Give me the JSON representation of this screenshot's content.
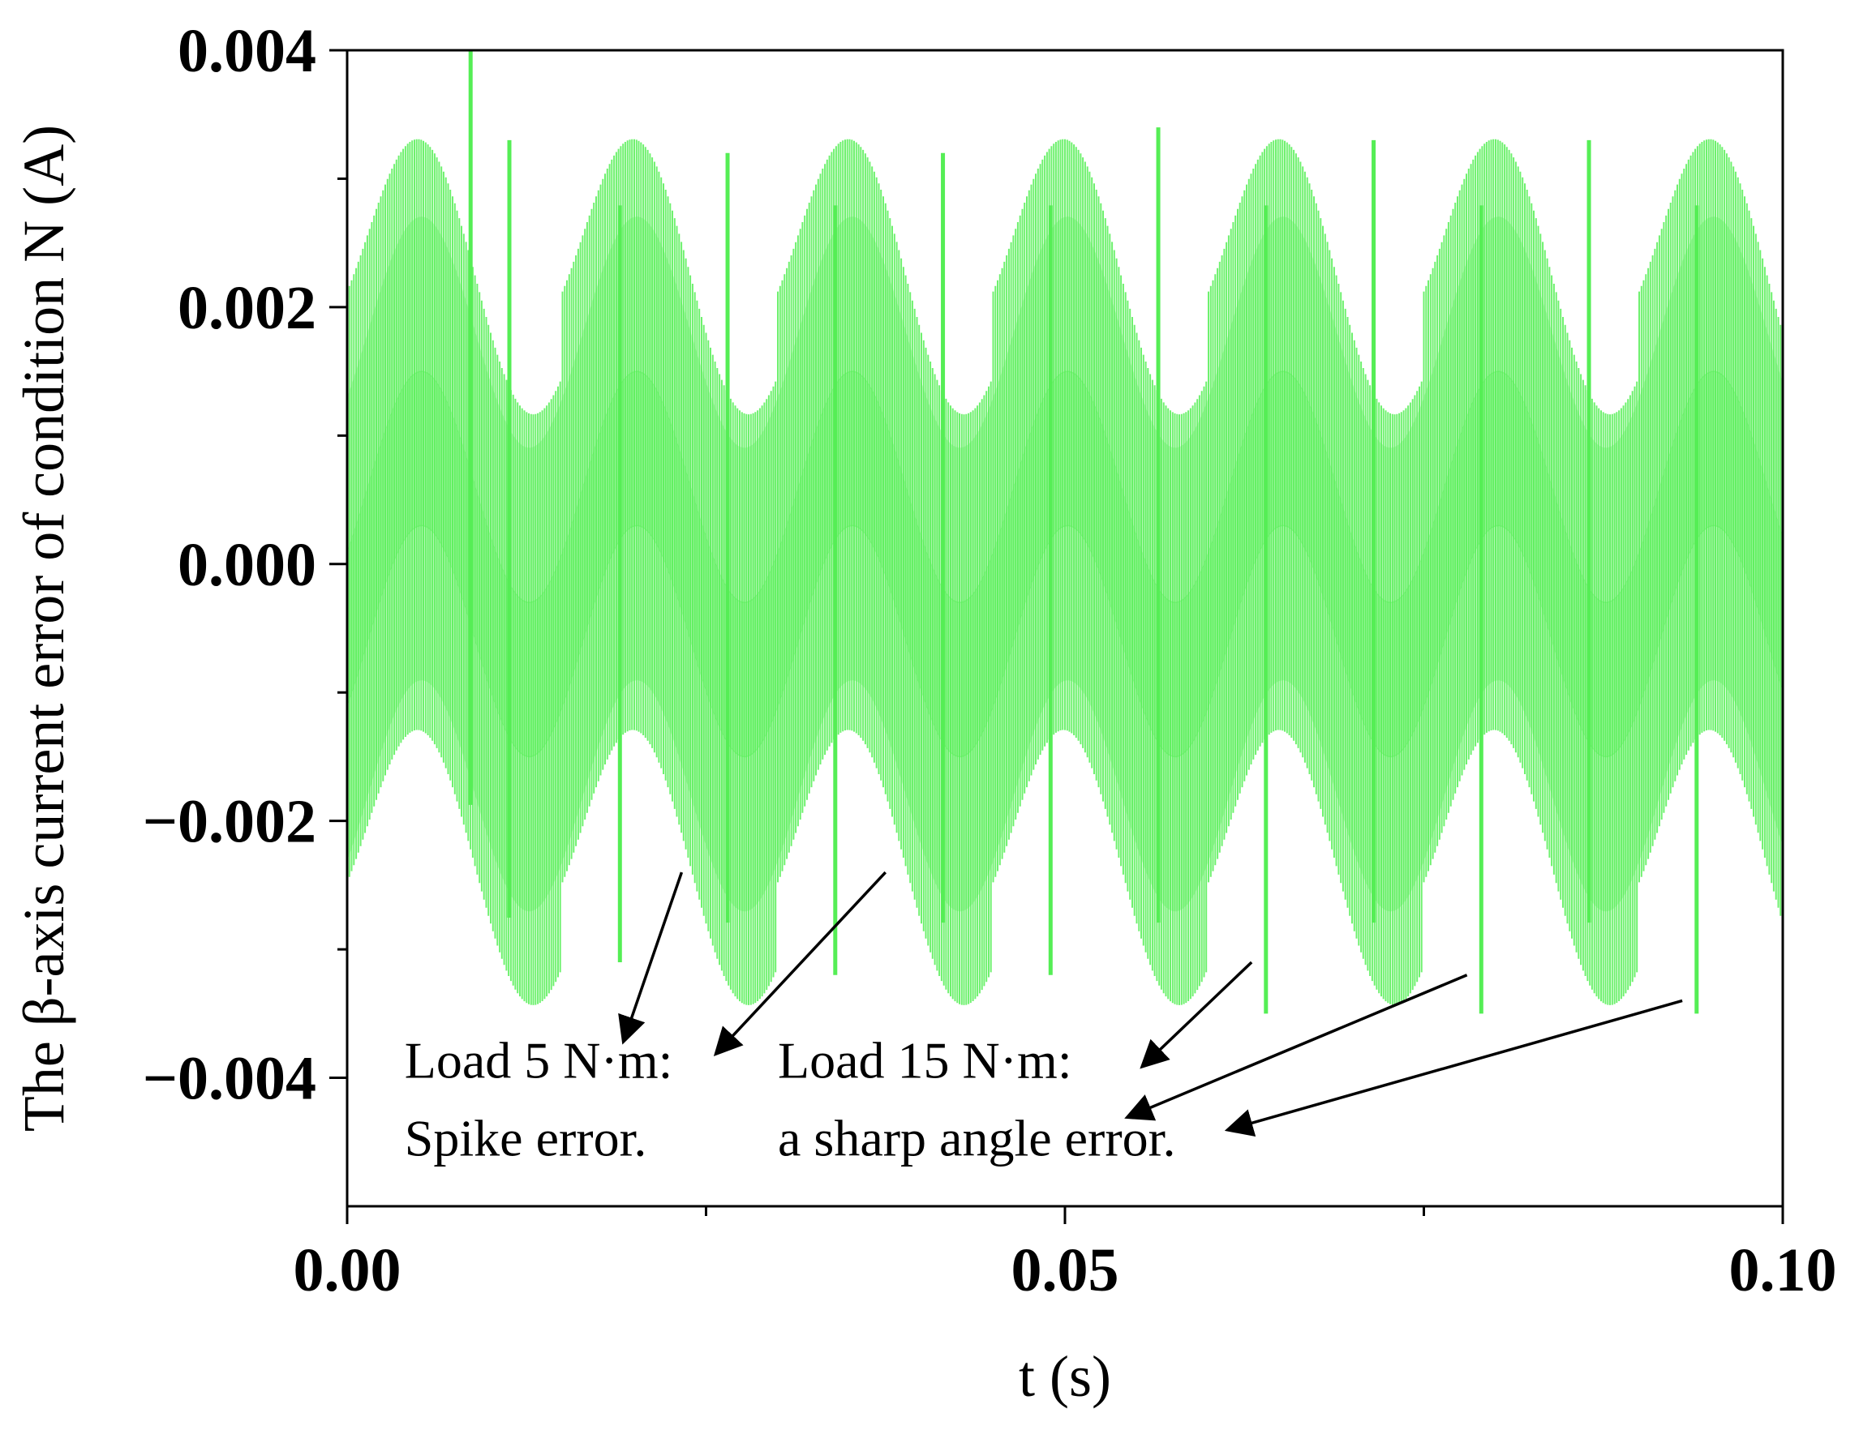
{
  "chart_data": {
    "type": "line",
    "title": "",
    "xlabel": "t (s)",
    "ylabel": "The β-axis current error of condition N (A)",
    "xlim": [
      0,
      0.1
    ],
    "ylim": [
      -0.005,
      0.004
    ],
    "x_ticks": [
      {
        "value": 0.0,
        "label": "0.00"
      },
      {
        "value": 0.05,
        "label": "0.05"
      },
      {
        "value": 0.1,
        "label": "0.10"
      }
    ],
    "x_minor_ticks": [
      0.025,
      0.075
    ],
    "y_ticks": [
      {
        "value": 0.004,
        "label": "0.004"
      },
      {
        "value": 0.002,
        "label": "0.002"
      },
      {
        "value": 0.0,
        "label": "0.000"
      },
      {
        "value": -0.002,
        "label": "−0.002"
      },
      {
        "value": -0.004,
        "label": "−0.004"
      }
    ],
    "y_minor_ticks": [
      0.003,
      0.001,
      -0.001,
      -0.003
    ],
    "series_color": "#55ee55",
    "grid": false,
    "electrical_period_s": 0.015,
    "envelope": {
      "fundamental_amplitude": 0.0009,
      "bands": [
        {
          "name": "upper",
          "offset": 0.0012,
          "opacity": 0.55
        },
        {
          "name": "middle",
          "offset": 0.0,
          "opacity": 0.85
        },
        {
          "name": "lower",
          "offset": -0.0012,
          "opacity": 0.55
        }
      ],
      "band_half_width": 0.0011
    },
    "peaks_upper": [
      {
        "x": 0.0086,
        "y": 0.004
      },
      {
        "x": 0.0113,
        "y": 0.0033
      },
      {
        "x": 0.0265,
        "y": 0.0032
      },
      {
        "x": 0.0415,
        "y": 0.0032
      },
      {
        "x": 0.0565,
        "y": 0.0034
      },
      {
        "x": 0.0715,
        "y": 0.0033
      },
      {
        "x": 0.0865,
        "y": 0.0033
      }
    ],
    "peaks_lower": [
      {
        "x": 0.019,
        "y": -0.0031
      },
      {
        "x": 0.034,
        "y": -0.0032
      },
      {
        "x": 0.049,
        "y": -0.0032
      },
      {
        "x": 0.064,
        "y": -0.0035
      },
      {
        "x": 0.079,
        "y": -0.0035
      },
      {
        "x": 0.094,
        "y": -0.0035
      }
    ],
    "annotations": [
      {
        "lines": [
          "Load 5 N·m:",
          "Spike error."
        ],
        "text_x": 0.004,
        "text_y": -0.004,
        "arrows": [
          {
            "from": [
              0.0233,
              -0.0024
            ],
            "to": [
              0.0193,
              -0.0037
            ]
          },
          {
            "from": [
              0.0375,
              -0.0024
            ],
            "to": [
              0.0258,
              -0.0038
            ]
          }
        ]
      },
      {
        "lines": [
          "Load 15 N·m:",
          "a sharp angle error."
        ],
        "text_x": 0.03,
        "text_y": -0.004,
        "arrows": [
          {
            "from": [
              0.063,
              -0.0031
            ],
            "to": [
              0.0555,
              -0.0039
            ]
          },
          {
            "from": [
              0.078,
              -0.0032
            ],
            "to": [
              0.0545,
              -0.0043
            ]
          },
          {
            "from": [
              0.093,
              -0.0034
            ],
            "to": [
              0.0615,
              -0.0044
            ]
          }
        ]
      }
    ]
  }
}
